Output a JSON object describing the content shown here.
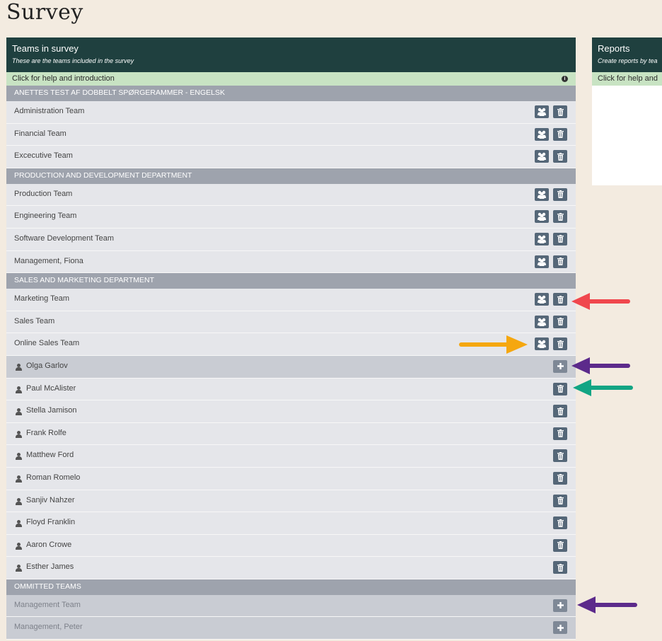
{
  "page": {
    "title": "Survey"
  },
  "teams_panel": {
    "title": "Teams in survey",
    "subtitle": "These are the teams included in the survey",
    "help": "Click for help and introduction",
    "sections": [
      {
        "name": "ANETTES TEST AF DOBBELT SPØRGERAMMER - ENGELSK",
        "rows": [
          "Administration Team",
          "Financial Team",
          "Excecutive Team"
        ]
      },
      {
        "name": "PRODUCTION AND DEVELOPMENT DEPARTMENT",
        "rows": [
          "Production Team",
          "Engineering Team",
          "Software Development Team",
          "Management, Fiona"
        ]
      },
      {
        "name": "SALES AND MARKETING DEPARTMENT",
        "rows": [
          "Marketing Team",
          "Sales Team",
          "Online Sales Team"
        ],
        "members": [
          "Olga Garlov",
          "Paul McAlister",
          "Stella Jamison",
          "Frank Rolfe",
          "Matthew Ford",
          "Roman Romelo",
          "Sanjiv Nahzer",
          "Floyd Franklin",
          "Aaron Crowe",
          "Esther James"
        ]
      },
      {
        "name": "OMMITTED TEAMS",
        "rows": [
          "Management Team",
          "Management, Peter"
        ]
      }
    ]
  },
  "reports_panel": {
    "title": "Reports",
    "subtitle": "Create reports by tea",
    "help": "Click for help and"
  },
  "icons": {
    "group": "group-icon",
    "trash": "trash-icon",
    "add": "plus-icon",
    "user": "user-icon",
    "info": "info-icon"
  },
  "colors": {
    "header_bg": "#1f403f",
    "help_bg": "#c8e3c3",
    "dept_bg": "#9ea3ad",
    "button_bg": "#556778",
    "arrow_red": "#f0474d",
    "arrow_orange": "#f5a70f",
    "arrow_purple": "#5c2a8b",
    "arrow_green": "#12a584"
  }
}
